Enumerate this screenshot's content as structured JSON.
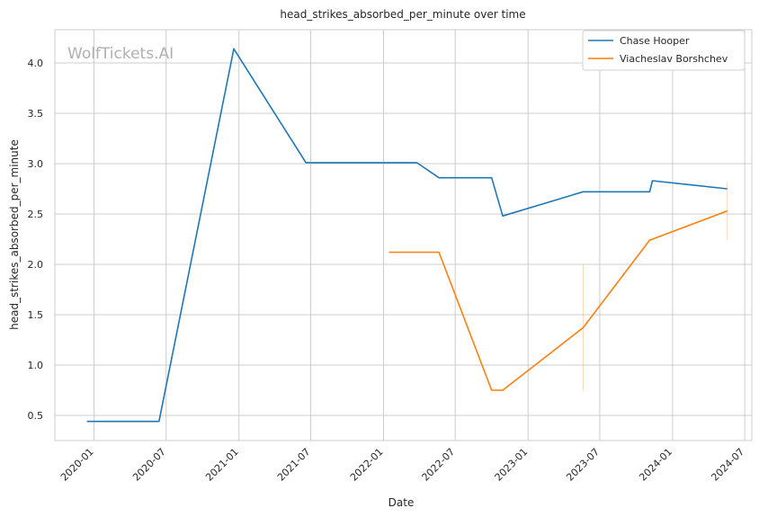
{
  "chart_data": {
    "type": "line",
    "title": "head_strikes_absorbed_per_minute over time",
    "xlabel": "Date",
    "ylabel": "head_strikes_absorbed_per_minute",
    "watermark": "WolfTickets.AI",
    "x_range": [
      "2019-09-24",
      "2024-07-19"
    ],
    "ylim": [
      0.25,
      4.33
    ],
    "x_ticks": [
      {
        "date": "2020-01-01",
        "label": "2020-01"
      },
      {
        "date": "2020-07-01",
        "label": "2020-07"
      },
      {
        "date": "2021-01-01",
        "label": "2021-01"
      },
      {
        "date": "2021-07-01",
        "label": "2021-07"
      },
      {
        "date": "2022-01-01",
        "label": "2022-01"
      },
      {
        "date": "2022-07-01",
        "label": "2022-07"
      },
      {
        "date": "2023-01-01",
        "label": "2023-01"
      },
      {
        "date": "2023-07-01",
        "label": "2023-07"
      },
      {
        "date": "2024-01-01",
        "label": "2024-01"
      },
      {
        "date": "2024-07-01",
        "label": "2024-07"
      }
    ],
    "y_ticks": [
      {
        "value": 0.5,
        "label": "0.5"
      },
      {
        "value": 1.0,
        "label": "1.0"
      },
      {
        "value": 1.5,
        "label": "1.5"
      },
      {
        "value": 2.0,
        "label": "2.0"
      },
      {
        "value": 2.5,
        "label": "2.5"
      },
      {
        "value": 3.0,
        "label": "3.0"
      },
      {
        "value": 3.5,
        "label": "3.5"
      },
      {
        "value": 4.0,
        "label": "4.0"
      }
    ],
    "grid": true,
    "legend_position": "top-right",
    "series": [
      {
        "name": "Chase Hooper",
        "color": "#1f77b4",
        "points": [
          {
            "x": "2019-12-14",
            "y": 0.44
          },
          {
            "x": "2020-06-13",
            "y": 0.44
          },
          {
            "x": "2020-12-19",
            "y": 4.14
          },
          {
            "x": "2021-06-19",
            "y": 3.01
          },
          {
            "x": "2022-03-26",
            "y": 3.01
          },
          {
            "x": "2022-05-21",
            "y": 2.86
          },
          {
            "x": "2022-10-01",
            "y": 2.86
          },
          {
            "x": "2022-10-29",
            "y": 2.48
          },
          {
            "x": "2023-05-20",
            "y": 2.72
          },
          {
            "x": "2023-11-04",
            "y": 2.72
          },
          {
            "x": "2023-11-11",
            "y": 2.83
          },
          {
            "x": "2024-05-18",
            "y": 2.75
          }
        ]
      },
      {
        "name": "Viacheslav Borshchev",
        "color": "#ff7f0e",
        "points": [
          {
            "x": "2022-01-15",
            "y": 2.12
          },
          {
            "x": "2022-05-21",
            "y": 2.12
          },
          {
            "x": "2022-10-01",
            "y": 0.75
          },
          {
            "x": "2022-10-29",
            "y": 0.75
          },
          {
            "x": "2023-05-20",
            "y": 1.37
          },
          {
            "x": "2023-11-04",
            "y": 2.24
          },
          {
            "x": "2023-11-11",
            "y": 2.25
          },
          {
            "x": "2024-05-18",
            "y": 2.53
          }
        ],
        "error_bars": [
          {
            "x": "2023-05-20",
            "low": 0.74,
            "high": 2.0
          },
          {
            "x": "2024-05-18",
            "low": 2.24,
            "high": 2.82
          }
        ]
      }
    ]
  }
}
